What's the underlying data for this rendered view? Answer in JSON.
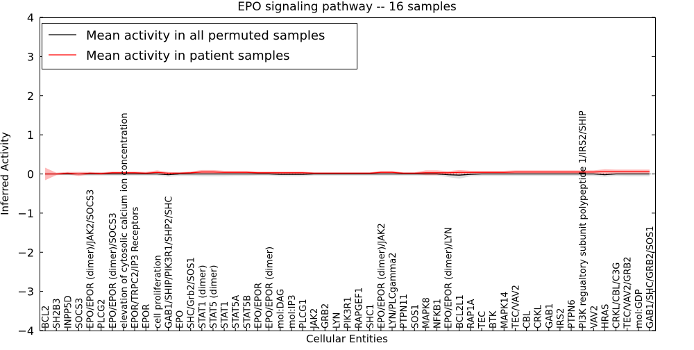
{
  "chart_data": {
    "type": "line",
    "title": "EPO signaling pathway -- 16 samples",
    "xlabel": "Cellular Entities",
    "ylabel": "Inferred Activity",
    "ylim": [
      -4,
      4
    ],
    "yticks": [
      -4,
      -3,
      -2,
      -1,
      0,
      1,
      2,
      3,
      4
    ],
    "ytick_labels": [
      "−4",
      "−3",
      "−2",
      "−1",
      "0",
      "1",
      "2",
      "3",
      "4"
    ],
    "legend_position": "top-left",
    "categories": [
      "BCL2",
      "SH2B3",
      "INPP5D",
      "SOCS3",
      "EPO/EPOR (dimer)/JAK2/SOCS3",
      "PLCG2",
      "EPO/EPOR (dimer)/SOCS3",
      "elevation of cytosolic calcium ion concentration",
      "EPOR/TRPC2/IP3 Receptors",
      "EPOR",
      "cell proliferation",
      "GAB1/SHIP/PIK3R1/SHP2/SHC",
      "EPO",
      "SHC/Grb2/SOS1",
      "STAT1 (dimer)",
      "STAT5 (dimer)",
      "STAT1",
      "STAT5A",
      "STAT5B",
      "EPO/EPOR",
      "EPO/EPOR (dimer)",
      "mol:DAG",
      "mol:IP3",
      "PLCG1",
      "JAK2",
      "GRB2",
      "LYN",
      "PIK3R1",
      "RAPGEF1",
      "SHC1",
      "EPO/EPOR (dimer)/JAK2",
      "LYN/PLCgamma2",
      "PTPN11",
      "SOS1",
      "MAPK8",
      "NFKB1",
      "EPO/EPOR (dimer)/LYN",
      "BCL2L1",
      "RAP1A",
      "TEC",
      "BTK",
      "MAPK14",
      "TEC/VAV2",
      "CBL",
      "CRKL",
      "GAB1",
      "IRS2",
      "PTPN6",
      "PI3K regualtory subunit polypeptide 1/IRS2/SHIP",
      "VAV2",
      "HRAS",
      "CRKL/CBL/C3G",
      "TEC/VAV2/GRB2",
      "mol:GDP",
      "GAB1/SHC/GRB2/SOS1"
    ],
    "series": [
      {
        "name": "Mean activity in all permuted samples",
        "color": "#000000",
        "band_color": "#c8c8c8",
        "values": [
          0,
          0,
          0,
          0,
          0,
          0,
          0,
          0,
          0,
          0,
          0,
          -0.02,
          0,
          0,
          0,
          0,
          0,
          0,
          0,
          0,
          0,
          -0.01,
          -0.01,
          -0.01,
          0,
          0,
          0,
          0,
          0,
          0,
          0,
          0,
          0,
          0,
          0,
          0,
          -0.02,
          -0.03,
          -0.01,
          0,
          0,
          0,
          0,
          0,
          0,
          0,
          0,
          0,
          0,
          0,
          -0.02,
          0,
          0,
          0,
          0
        ],
        "spread": [
          0.04,
          0.03,
          0.03,
          0.04,
          0.04,
          0.04,
          0.04,
          0.04,
          0.04,
          0.04,
          0.04,
          0.05,
          0.05,
          0.05,
          0.06,
          0.06,
          0.06,
          0.05,
          0.05,
          0.04,
          0.04,
          0.05,
          0.05,
          0.05,
          0.04,
          0.04,
          0.04,
          0.04,
          0.04,
          0.04,
          0.04,
          0.04,
          0.04,
          0.04,
          0.04,
          0.04,
          0.06,
          0.09,
          0.05,
          0.05,
          0.05,
          0.05,
          0.05,
          0.05,
          0.05,
          0.05,
          0.05,
          0.05,
          0.05,
          0.05,
          0.05,
          0.05,
          0.06,
          0.06,
          0.06
        ]
      },
      {
        "name": "Mean activity in patient samples",
        "color": "#ff0000",
        "band_color": "#ff9a9a",
        "values": [
          0,
          0,
          0.02,
          0,
          0.02,
          0.01,
          0.03,
          0.03,
          0.03,
          0.02,
          0.04,
          0.02,
          0.02,
          0.03,
          0.05,
          0.05,
          0.04,
          0.04,
          0.04,
          0.03,
          0.03,
          0.03,
          0.03,
          0.03,
          0.02,
          0.02,
          0.02,
          0.02,
          0.02,
          0.02,
          0.04,
          0.04,
          0.02,
          0.02,
          0.03,
          0.03,
          0.03,
          0.04,
          0.04,
          0.04,
          0.04,
          0.04,
          0.05,
          0.05,
          0.05,
          0.05,
          0.05,
          0.05,
          0.05,
          0.05,
          0.06,
          0.06,
          0.06,
          0.06,
          0.06
        ],
        "spread": [
          0.16,
          0.03,
          0.03,
          0.05,
          0.03,
          0.03,
          0.03,
          0.03,
          0.03,
          0.03,
          0.05,
          0.03,
          0.02,
          0.03,
          0.05,
          0.05,
          0.04,
          0.04,
          0.04,
          0.03,
          0.03,
          0.03,
          0.03,
          0.03,
          0.02,
          0.02,
          0.02,
          0.02,
          0.02,
          0.02,
          0.04,
          0.04,
          0.02,
          0.02,
          0.06,
          0.06,
          0.04,
          0.06,
          0.04,
          0.04,
          0.04,
          0.04,
          0.04,
          0.04,
          0.04,
          0.04,
          0.04,
          0.04,
          0.04,
          0.04,
          0.06,
          0.05,
          0.05,
          0.05,
          0.05
        ]
      }
    ]
  }
}
